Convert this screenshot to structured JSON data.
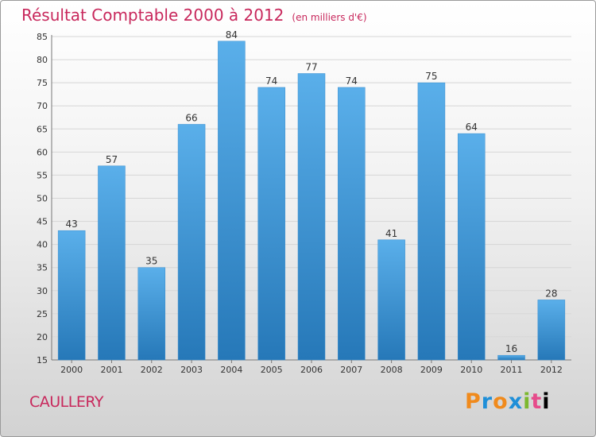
{
  "header": {
    "title": "Résultat Comptable 2000 à 2012",
    "subtitle": "(en milliers d'€)"
  },
  "commune": "CAULLERY",
  "brand": {
    "name": "Proxiti",
    "letters": [
      "P",
      "r",
      "o",
      "x",
      "i",
      "t",
      "i"
    ]
  },
  "colors": {
    "bar_top": "#5aafea",
    "bar_bottom": "#2678b8",
    "title": "#c8285c"
  },
  "chart_data": {
    "type": "bar",
    "title": "Résultat Comptable 2000 à 2012",
    "subtitle": "(en milliers d'€)",
    "xlabel": "",
    "ylabel": "",
    "categories": [
      "2000",
      "2001",
      "2002",
      "2003",
      "2004",
      "2005",
      "2006",
      "2007",
      "2008",
      "2009",
      "2010",
      "2011",
      "2012"
    ],
    "values": [
      43,
      57,
      35,
      66,
      84,
      74,
      77,
      74,
      41,
      75,
      64,
      16,
      28
    ],
    "ylim": [
      15,
      85
    ],
    "yticks": [
      15,
      20,
      25,
      30,
      35,
      40,
      45,
      50,
      55,
      60,
      65,
      70,
      75,
      80,
      85
    ],
    "grid": true,
    "data_labels": true
  }
}
